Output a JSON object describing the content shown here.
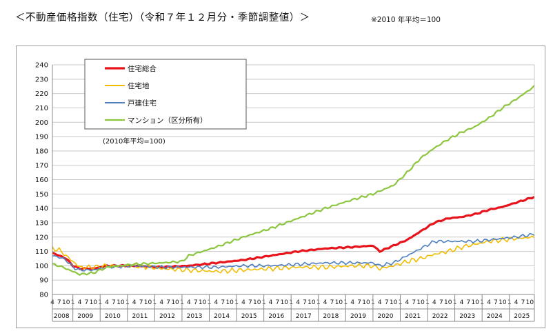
{
  "heading": "＜不動産価格指数（住宅）（令和７年１２月分・季節調整値）＞",
  "note": "※2010 年平均＝100",
  "chart_data": {
    "type": "line",
    "base_label": "(2010年平均=100)",
    "legend_position": "top-left",
    "grid": true,
    "ylim": [
      80,
      240
    ],
    "ytick_step": 10,
    "x_range": [
      "2008-04",
      "2025-12"
    ],
    "month_ticks": [
      "4",
      "7",
      "10",
      "1"
    ],
    "years": [
      "2008",
      "2009",
      "2010",
      "2011",
      "2012",
      "2013",
      "2014",
      "2015",
      "2016",
      "2017",
      "2018",
      "2019",
      "2020",
      "2021",
      "2022",
      "2023",
      "2024",
      "2025"
    ],
    "series": [
      {
        "name": "住宅総合",
        "color": "#e8141c",
        "width": 3.2,
        "noise": 0.5,
        "anchors": [
          [
            "2008-04",
            109
          ],
          [
            "2008-07",
            107
          ],
          [
            "2008-10",
            105
          ],
          [
            "2009-01",
            100
          ],
          [
            "2009-04",
            98
          ],
          [
            "2009-10",
            98
          ],
          [
            "2010-04",
            100
          ],
          [
            "2011-04",
            100
          ],
          [
            "2012-04",
            99
          ],
          [
            "2013-04",
            100
          ],
          [
            "2014-04",
            102
          ],
          [
            "2015-04",
            104
          ],
          [
            "2016-04",
            107
          ],
          [
            "2017-04",
            110
          ],
          [
            "2018-04",
            112
          ],
          [
            "2019-04",
            113
          ],
          [
            "2020-01",
            114
          ],
          [
            "2020-04",
            110
          ],
          [
            "2020-10",
            114
          ],
          [
            "2021-04",
            118
          ],
          [
            "2021-10",
            124
          ],
          [
            "2022-04",
            130
          ],
          [
            "2022-10",
            133
          ],
          [
            "2023-04",
            134
          ],
          [
            "2023-10",
            136
          ],
          [
            "2024-04",
            139
          ],
          [
            "2024-10",
            141
          ],
          [
            "2025-04",
            144
          ],
          [
            "2025-12",
            148
          ]
        ]
      },
      {
        "name": "住宅地",
        "color": "#f2bc00",
        "width": 1.6,
        "noise": 1.8,
        "anchors": [
          [
            "2008-04",
            112
          ],
          [
            "2008-07",
            111
          ],
          [
            "2008-10",
            107
          ],
          [
            "2009-01",
            103
          ],
          [
            "2009-04",
            99
          ],
          [
            "2009-10",
            99
          ],
          [
            "2010-04",
            100
          ],
          [
            "2011-04",
            100
          ],
          [
            "2012-04",
            98
          ],
          [
            "2013-04",
            97
          ],
          [
            "2014-04",
            96
          ],
          [
            "2015-04",
            97
          ],
          [
            "2016-04",
            98
          ],
          [
            "2017-04",
            99
          ],
          [
            "2018-04",
            99
          ],
          [
            "2019-04",
            100
          ],
          [
            "2020-01",
            100
          ],
          [
            "2020-04",
            98
          ],
          [
            "2020-10",
            100
          ],
          [
            "2021-04",
            103
          ],
          [
            "2021-10",
            105
          ],
          [
            "2022-04",
            108
          ],
          [
            "2022-10",
            110
          ],
          [
            "2023-04",
            113
          ],
          [
            "2023-10",
            115
          ],
          [
            "2024-04",
            117
          ],
          [
            "2024-10",
            118
          ],
          [
            "2025-04",
            119
          ],
          [
            "2025-12",
            120
          ]
        ]
      },
      {
        "name": "戸建住宅",
        "color": "#4f7fbf",
        "width": 1.6,
        "noise": 1.2,
        "anchors": [
          [
            "2008-04",
            107
          ],
          [
            "2008-07",
            106
          ],
          [
            "2008-10",
            104
          ],
          [
            "2009-01",
            99
          ],
          [
            "2009-04",
            97
          ],
          [
            "2009-10",
            97
          ],
          [
            "2010-04",
            99
          ],
          [
            "2011-04",
            100
          ],
          [
            "2012-04",
            99
          ],
          [
            "2013-04",
            99
          ],
          [
            "2014-04",
            99
          ],
          [
            "2015-04",
            100
          ],
          [
            "2016-04",
            100
          ],
          [
            "2017-04",
            101
          ],
          [
            "2018-04",
            102
          ],
          [
            "2019-04",
            102
          ],
          [
            "2020-01",
            102
          ],
          [
            "2020-04",
            100
          ],
          [
            "2020-10",
            102
          ],
          [
            "2021-04",
            107
          ],
          [
            "2021-10",
            112
          ],
          [
            "2022-04",
            117
          ],
          [
            "2022-10",
            117
          ],
          [
            "2023-04",
            117
          ],
          [
            "2023-10",
            117
          ],
          [
            "2024-04",
            118
          ],
          [
            "2024-10",
            119
          ],
          [
            "2025-04",
            120
          ],
          [
            "2025-12",
            122
          ]
        ]
      },
      {
        "name": "マンション（区分所有）",
        "color": "#8cc63f",
        "width": 2.2,
        "noise": 0.9,
        "anchors": [
          [
            "2008-04",
            101
          ],
          [
            "2008-07",
            100
          ],
          [
            "2008-10",
            98
          ],
          [
            "2009-01",
            96
          ],
          [
            "2009-04",
            94
          ],
          [
            "2009-10",
            95
          ],
          [
            "2010-04",
            99
          ],
          [
            "2011-04",
            101
          ],
          [
            "2012-04",
            102
          ],
          [
            "2013-01",
            103
          ],
          [
            "2013-04",
            107
          ],
          [
            "2014-04",
            113
          ],
          [
            "2015-04",
            120
          ],
          [
            "2016-04",
            126
          ],
          [
            "2017-04",
            133
          ],
          [
            "2018-04",
            140
          ],
          [
            "2019-04",
            146
          ],
          [
            "2020-01",
            150
          ],
          [
            "2020-04",
            152
          ],
          [
            "2020-10",
            156
          ],
          [
            "2021-04",
            165
          ],
          [
            "2021-10",
            175
          ],
          [
            "2022-04",
            182
          ],
          [
            "2022-10",
            188
          ],
          [
            "2023-04",
            193
          ],
          [
            "2023-10",
            197
          ],
          [
            "2024-04",
            203
          ],
          [
            "2024-10",
            210
          ],
          [
            "2025-04",
            216
          ],
          [
            "2025-12",
            225
          ]
        ]
      }
    ]
  }
}
